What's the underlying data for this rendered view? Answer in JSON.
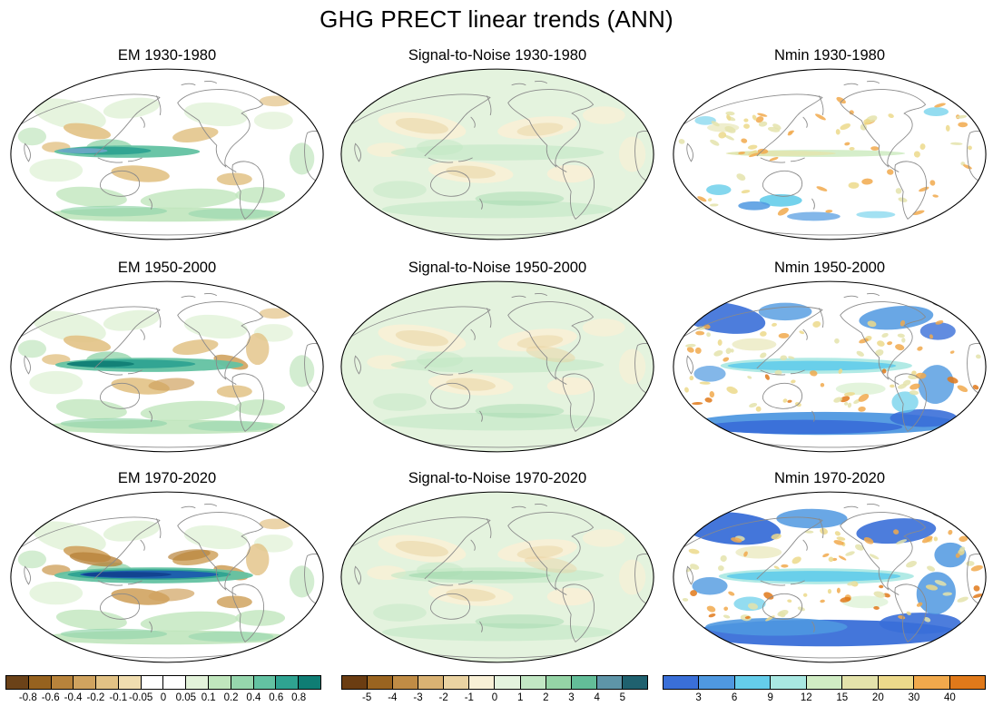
{
  "title": "GHG PRECT linear trends (ANN)",
  "panels": [
    {
      "title": "EM 1930-1980",
      "type": "em",
      "row": 0
    },
    {
      "title": "Signal-to-Noise 1930-1980",
      "type": "s2n",
      "row": 0
    },
    {
      "title": "Nmin 1930-1980",
      "type": "nmin",
      "row": 0
    },
    {
      "title": "EM 1950-2000",
      "type": "em",
      "row": 1
    },
    {
      "title": "Signal-to-Noise 1950-2000",
      "type": "s2n",
      "row": 1
    },
    {
      "title": "Nmin 1950-2000",
      "type": "nmin",
      "row": 1
    },
    {
      "title": "EM 1970-2020",
      "type": "em",
      "row": 2
    },
    {
      "title": "Signal-to-Noise 1970-2020",
      "type": "s2n",
      "row": 2
    },
    {
      "title": "Nmin 1970-2020",
      "type": "nmin",
      "row": 2
    }
  ],
  "colorbars": [
    {
      "name": "em",
      "labels": [
        "-0.8",
        "-0.6",
        "-0.4",
        "-0.2",
        "-0.1",
        "-0.05",
        "0",
        "0.05",
        "0.1",
        "0.2",
        "0.4",
        "0.6",
        "0.8"
      ],
      "colors": [
        "#6b4218",
        "#96621f",
        "#b8833b",
        "#d0a35f",
        "#e2c285",
        "#f0ddb0",
        "#ffffff",
        "#ffffff",
        "#e3f3da",
        "#c0e6bd",
        "#96d6ad",
        "#63c2a2",
        "#2fa391",
        "#0f7d74"
      ]
    },
    {
      "name": "s2n",
      "labels": [
        "-5",
        "-4",
        "-3",
        "-2",
        "-1",
        "0",
        "1",
        "2",
        "3",
        "4",
        "5"
      ],
      "colors": [
        "#6b3d12",
        "#9a6420",
        "#c08c45",
        "#d9b273",
        "#ead3a2",
        "#f8f0d6",
        "#e4f3de",
        "#c2e7c4",
        "#95d4a6",
        "#63bd98",
        "#5e95a8",
        "#1f616f"
      ]
    },
    {
      "name": "nmin",
      "labels": [
        "3",
        "6",
        "9",
        "12",
        "15",
        "20",
        "30",
        "40"
      ],
      "colors": [
        "#3a6fd8",
        "#4f98e0",
        "#65cdea",
        "#a9e8e2",
        "#d0ecc4",
        "#e4e3ab",
        "#ecd98b",
        "#f1a94c",
        "#e0791a"
      ]
    }
  ],
  "map_colors": {
    "coastline": "#8a8a8a",
    "map_outline": "#000000",
    "ocean_background": "#ffffff",
    "em_band_blue_gray": "#6fa7c9",
    "em_band_dark_blue": "#1e5cae",
    "em_band_dark_blue2": "#12418f"
  },
  "chart_data": {
    "type": "heatmap",
    "subtype": "global-map-grid",
    "title": "GHG PRECT linear trends (ANN)",
    "grid": {
      "rows": 3,
      "cols": 3
    },
    "columns": [
      "EM",
      "Signal-to-Noise",
      "Nmin"
    ],
    "periods": [
      "1930-1980",
      "1950-2000",
      "1970-2020"
    ],
    "panel_titles": [
      "EM 1930-1980",
      "Signal-to-Noise 1930-1980",
      "Nmin 1930-1980",
      "EM 1950-2000",
      "Signal-to-Noise 1950-2000",
      "Nmin 1950-2000",
      "EM 1970-2020",
      "Signal-to-Noise 1970-2020",
      "Nmin 1970-2020"
    ],
    "projection": "Robinson-style ellipse, Pacific-centered",
    "legend_position": "bottom",
    "colorbars": [
      {
        "applies_to_column": "EM",
        "ticks": [
          -0.8,
          -0.6,
          -0.4,
          -0.2,
          -0.1,
          -0.05,
          0,
          0.05,
          0.1,
          0.2,
          0.4,
          0.6,
          0.8
        ]
      },
      {
        "applies_to_column": "Signal-to-Noise",
        "ticks": [
          -5,
          -4,
          -3,
          -2,
          -1,
          0,
          1,
          2,
          3,
          4,
          5
        ]
      },
      {
        "applies_to_column": "Nmin",
        "ticks": [
          3,
          6,
          9,
          12,
          15,
          20,
          30,
          40
        ]
      }
    ],
    "notes": "EM panels: ensemble-mean precipitation trends (brown negative, green positive) with a wet equatorial-Pacific band that strengthens through the periods, reaching dark blue-teal in 1970-2020. Signal-to-Noise panels: weak positive (pale green) over most of the globe with pale tan subtropical patches. Nmin panels: scattered orange/yellow speckles in 1930-1980; widespread blue (high Nmin) over southern oceans, high latitudes and an equatorial cyan band in 1950-2000 and 1970-2020."
  }
}
